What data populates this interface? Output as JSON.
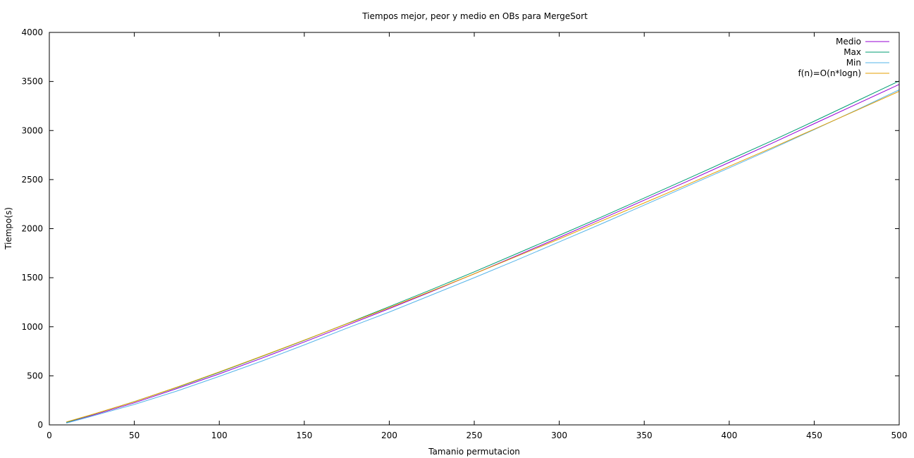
{
  "chart_data": {
    "type": "line",
    "title": "Tiempos mejor, peor y medio en OBs para MergeSort",
    "xlabel": "Tamanio permutacion",
    "ylabel": "Tiempo(s)",
    "xlim": [
      0,
      500
    ],
    "ylim": [
      0,
      4000
    ],
    "xticks": [
      0,
      50,
      100,
      150,
      200,
      250,
      300,
      350,
      400,
      450,
      500
    ],
    "yticks": [
      0,
      500,
      1000,
      1500,
      2000,
      2500,
      3000,
      3500,
      4000
    ],
    "grid": false,
    "legend_position": "top-right",
    "x": [
      10,
      25,
      50,
      75,
      100,
      125,
      150,
      175,
      200,
      225,
      250,
      275,
      300,
      325,
      350,
      375,
      400,
      425,
      450,
      475,
      500
    ],
    "series": [
      {
        "name": "Medio",
        "color": "#9400d3",
        "values": [
          20,
          95,
          225,
          370,
          520,
          680,
          845,
          1015,
          1185,
          1360,
          1540,
          1725,
          1910,
          2100,
          2290,
          2480,
          2675,
          2870,
          3070,
          3270,
          3470
        ]
      },
      {
        "name": "Max",
        "color": "#009e73",
        "values": [
          26,
          103,
          237,
          381,
          536,
          697,
          862,
          1032,
          1205,
          1380,
          1560,
          1745,
          1932,
          2120,
          2312,
          2505,
          2700,
          2895,
          3095,
          3300,
          3505
        ]
      },
      {
        "name": "Min",
        "color": "#56b4e9",
        "values": [
          18,
          88,
          208,
          345,
          495,
          650,
          815,
          985,
          1150,
          1325,
          1500,
          1680,
          1865,
          2050,
          2240,
          2430,
          2620,
          2812,
          3010,
          3210,
          3415
        ]
      },
      {
        "name": "f(n)=O(n*logn)",
        "color": "#e69f00",
        "values": [
          30,
          105,
          236,
          384,
          540,
          700,
          864,
          1030,
          1195,
          1365,
          1540,
          1718,
          1895,
          2080,
          2262,
          2447,
          2635,
          2823,
          3014,
          3206,
          3400
        ]
      }
    ]
  }
}
